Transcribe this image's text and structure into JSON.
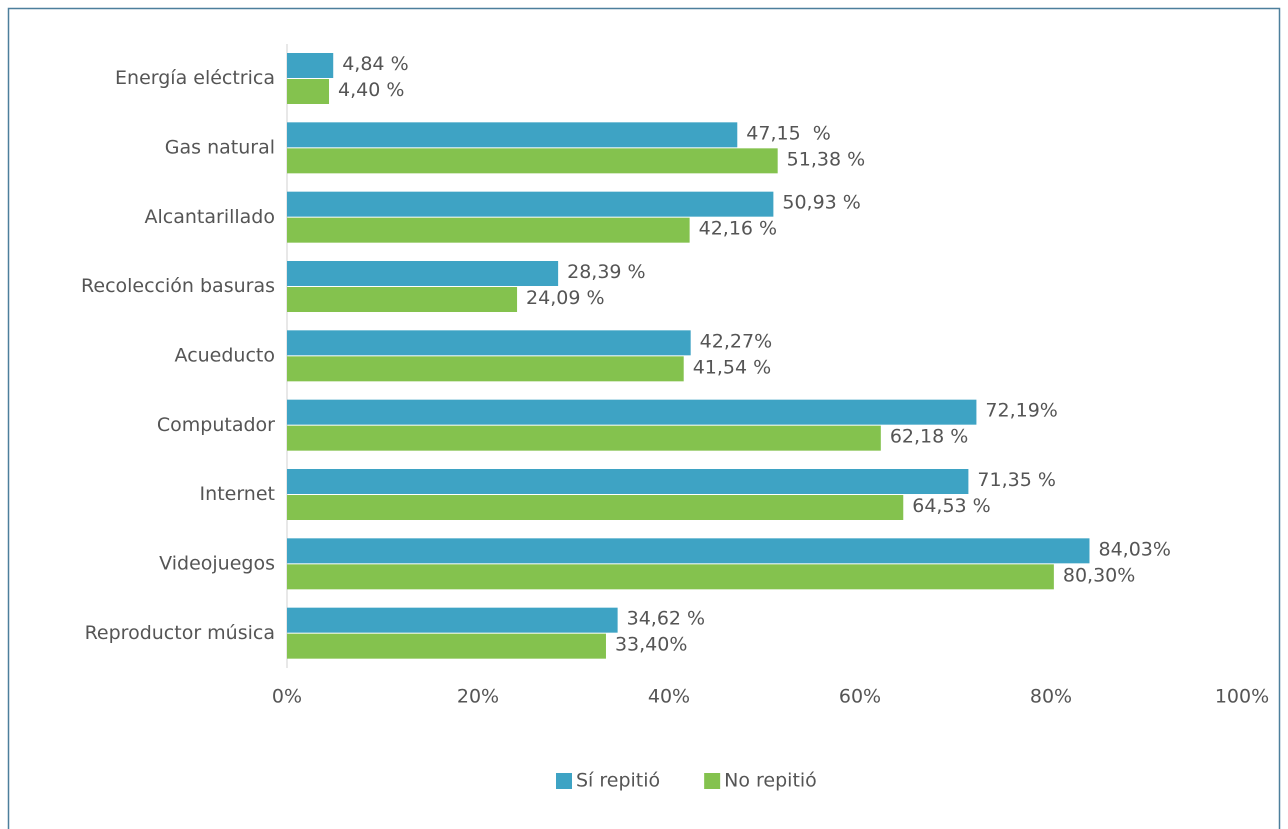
{
  "chart_data": {
    "type": "bar",
    "orientation": "horizontal",
    "categories": [
      "Energía eléctrica",
      "Gas natural",
      "Alcantarillado",
      "Recolección basuras",
      "Acueducto",
      "Computador",
      "Internet",
      "Videojuegos",
      "Reproductor música"
    ],
    "series": [
      {
        "name": "Sí repitió",
        "color": "#3ea3c4",
        "values": [
          4.84,
          47.15,
          50.93,
          28.39,
          42.27,
          72.19,
          71.35,
          84.03,
          34.62
        ],
        "value_labels": [
          "4,84 %",
          "47,15  %",
          "50,93 %",
          "28,39 %",
          "42,27%",
          "72,19%",
          "71,35 %",
          "84,03%",
          "34,62 %"
        ]
      },
      {
        "name": "No repitió",
        "color": "#84c24e",
        "values": [
          4.4,
          51.38,
          42.16,
          24.09,
          41.54,
          62.18,
          64.53,
          80.3,
          33.4
        ],
        "value_labels": [
          "4,40 %",
          "51,38 %",
          "42,16 %",
          "24,09 %",
          "41,54 %",
          "62,18 %",
          "64,53 %",
          "80,30%",
          "33,40%"
        ]
      }
    ],
    "xlim": [
      0,
      100
    ],
    "xticks": [
      {
        "value": 0,
        "label": "0%"
      },
      {
        "value": 20,
        "label": "20%"
      },
      {
        "value": 40,
        "label": "40%"
      },
      {
        "value": 60,
        "label": "60%"
      },
      {
        "value": 80,
        "label": "80%"
      },
      {
        "value": 100,
        "label": "100%"
      }
    ],
    "legend": "bottom"
  }
}
